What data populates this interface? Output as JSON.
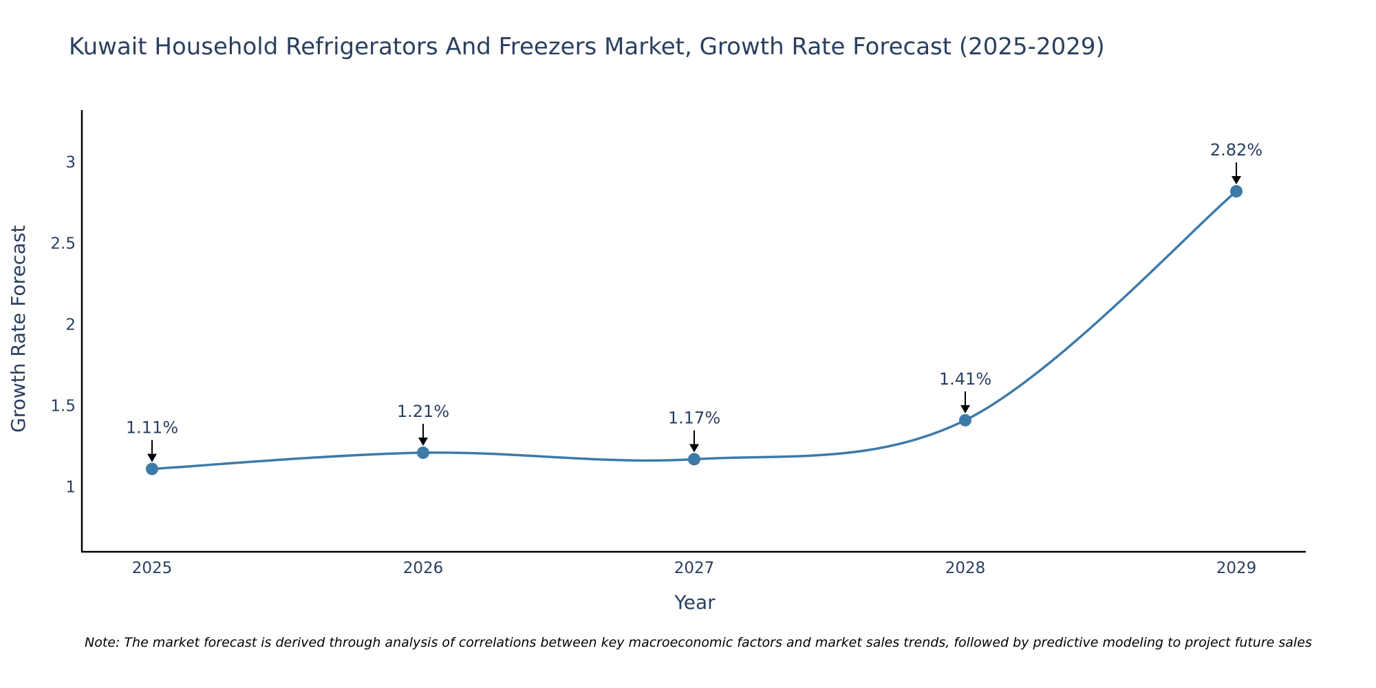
{
  "chart_data": {
    "type": "line",
    "title": "Kuwait Household Refrigerators And Freezers Market, Growth Rate Forecast (2025-2029)",
    "xlabel": "Year",
    "ylabel": "Growth Rate Forecast",
    "categories": [
      "2025",
      "2026",
      "2027",
      "2028",
      "2029"
    ],
    "values": [
      1.11,
      1.21,
      1.17,
      1.41,
      2.82
    ],
    "data_labels": [
      "1.11%",
      "1.21%",
      "1.17%",
      "1.41%",
      "2.82%"
    ],
    "y_ticks": [
      1,
      1.5,
      2,
      2.5,
      3
    ],
    "y_tick_labels": [
      "1",
      "1.5",
      "2",
      "2.5",
      "3"
    ],
    "ylim": [
      0.6,
      3.32
    ],
    "grid": false,
    "line_color": "#3d7aa8",
    "marker_color": "#3d7aa8",
    "note": "Note: The market forecast is derived through analysis of correlations between key macroeconomic factors and market sales trends, followed by predictive modeling to project future sales"
  }
}
